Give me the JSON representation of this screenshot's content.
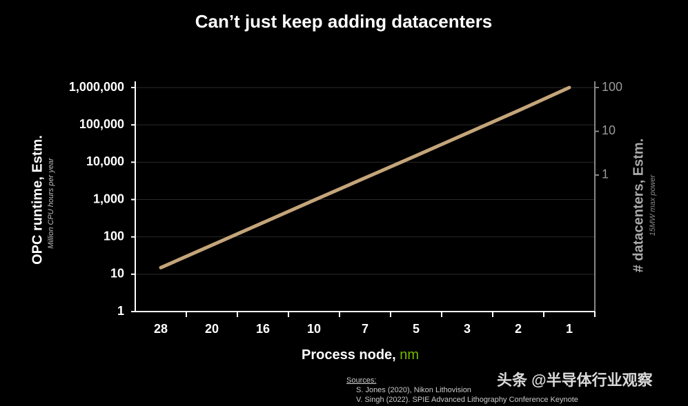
{
  "chart_data": {
    "type": "line",
    "title": "Can’t just keep adding datacenters",
    "x_label": "Process node, ",
    "x_label_unit": "nm",
    "y_label": "OPC runtime, Estm.",
    "y_sublabel": "Million CPU hours per year",
    "y2_label": "# datacenters, Estm.",
    "y2_sublabel": "15MW max power",
    "categories": [
      "28",
      "20",
      "16",
      "10",
      "7",
      "5",
      "3",
      "2",
      "1"
    ],
    "series": [
      {
        "name": "OPC runtime",
        "color": "#c4a57a",
        "values": [
          15,
          60,
          240,
          960,
          3800,
          15000,
          60000,
          240000,
          1000000
        ]
      }
    ],
    "log_scale": true,
    "ylim": [
      1,
      1000000
    ],
    "yticks": [
      1,
      10,
      100,
      {
        "value": 1000,
        "label": "1,000"
      },
      {
        "value": 10000,
        "label": "10,000"
      },
      {
        "value": 100000,
        "label": "100,000"
      },
      {
        "value": 1000000,
        "label": "1,000,000"
      }
    ],
    "y2lim": [
      0.00076,
      100
    ],
    "y2ticks": [
      1,
      10,
      100
    ],
    "grid": true,
    "sources_heading": "Sources:",
    "sources": [
      "S. Jones (2020), Nikon Lithovision",
      "V. Singh (2022). SPIE Advanced Lithography Conference Keynote"
    ],
    "watermark": "头条 @半导体行业观察"
  }
}
